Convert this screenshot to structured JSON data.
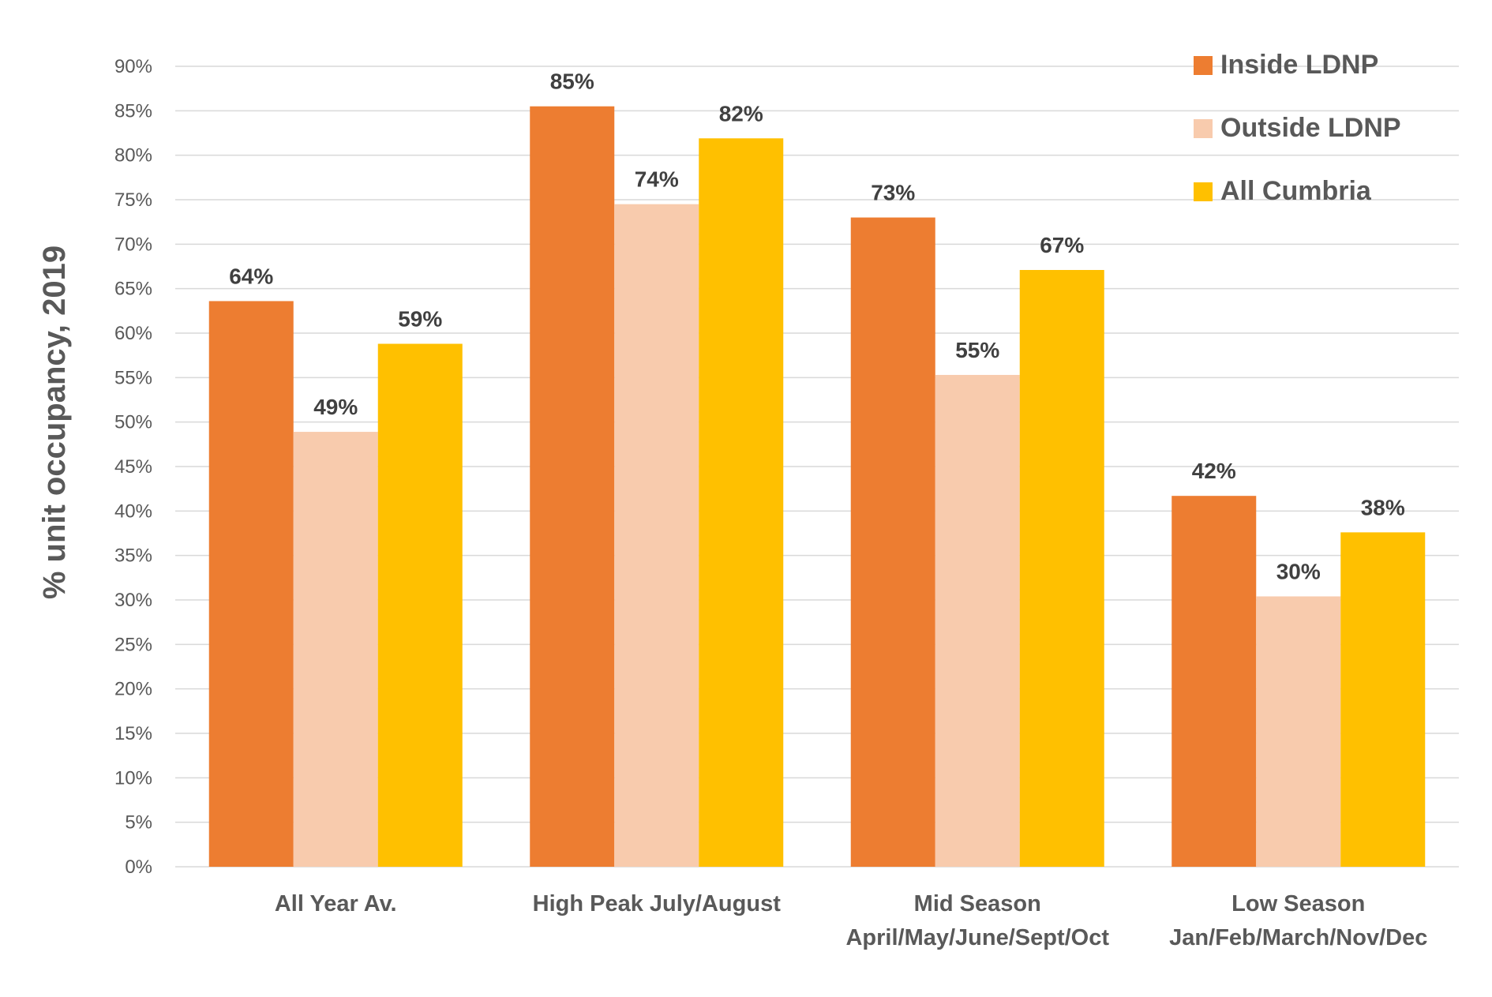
{
  "chart_data": {
    "type": "bar",
    "title": "",
    "xlabel": "",
    "ylabel": "% unit occupancy, 2019",
    "ylim": [
      0,
      90
    ],
    "ytick_step": 5,
    "grid": true,
    "legend_position": "top-right",
    "categories": [
      [
        "All Year Av."
      ],
      [
        "High Peak July/August"
      ],
      [
        "Mid Season",
        "April/May/June/Sept/Oct"
      ],
      [
        "Low Season",
        "Jan/Feb/March/Nov/Dec"
      ]
    ],
    "series": [
      {
        "name": "Inside LDNP",
        "color": "#ED7D31",
        "values": [
          64,
          85,
          73,
          42
        ],
        "labels": [
          "64%",
          "85%",
          "73%",
          "42%"
        ],
        "plot_values": [
          63.6,
          85.5,
          73.0,
          41.7
        ]
      },
      {
        "name": "Outside LDNP",
        "color": "#F8CBAD",
        "values": [
          49,
          74,
          55,
          30
        ],
        "labels": [
          "49%",
          "74%",
          "55%",
          "30%"
        ],
        "plot_values": [
          48.9,
          74.5,
          55.3,
          30.4
        ]
      },
      {
        "name": "All Cumbria",
        "color": "#FFC000",
        "values": [
          59,
          82,
          67,
          38
        ],
        "labels": [
          "59%",
          "82%",
          "67%",
          "38%"
        ],
        "plot_values": [
          58.8,
          81.9,
          67.1,
          37.6
        ]
      }
    ]
  }
}
